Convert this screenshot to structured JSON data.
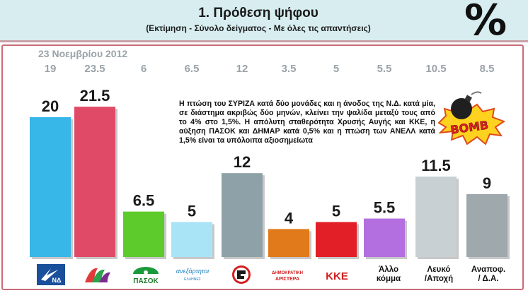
{
  "header": {
    "title": "1. Πρόθεση ψήφου",
    "subtitle": "(Εκτίμηση - Σύνολο δείγματος - Με όλες τις απαντήσεις)",
    "percent_symbol": "%"
  },
  "previous": {
    "date_label": "23 Νοεμβρίου 2012",
    "values": [
      "19",
      "23.5",
      "6",
      "6.5",
      "12",
      "3.5",
      "5",
      "5.5",
      "10.5",
      "8.5"
    ]
  },
  "note": {
    "text": "Η πτώση του ΣΥΡΙΖΑ κατά δύο μονάδες και η άνοδος της Ν.Δ. κατά μία, σε διάστημα ακριβώς δύο μηνών, κλείνει την ψαλίδα μεταξύ τους από το 4% στο 1,5%. Η απόλυτη σταθερότητα Χρυσής Αυγής και ΚΚΕ, η αύξηση ΠΑΣΟΚ και ΔΗΜΑΡ κατά 0,5% και η πτώση των ΑΝΕΛΛ κατά 1,5% είναι τα υπόλοιπα αξιοσημείωτα"
  },
  "bomb": {
    "text": "BOMB"
  },
  "chart_data": {
    "type": "bar",
    "categories": [
      "ΝΔ",
      "ΣΥΡΙΖΑ",
      "ΠΑΣΟΚ",
      "Ανεξάρτητοι Έλληνες",
      "Χρυσή Αυγή",
      "ΔΗΜΑΡ",
      "ΚΚΕ",
      "Άλλο κόμμα",
      "Λευκό /Αποχή",
      "Αναποφ. / Δ.Α."
    ],
    "values": [
      20,
      21.5,
      6.5,
      5,
      12,
      4,
      5,
      5.5,
      11.5,
      9
    ],
    "value_labels": [
      "20",
      "21.5",
      "6.5",
      "5",
      "12",
      "4",
      "5",
      "5.5",
      "11.5",
      "9"
    ],
    "colors": [
      "#37b6e8",
      "#e04a66",
      "#5ecb2c",
      "#a9e4f6",
      "#8fa1a8",
      "#e07a1a",
      "#e21e26",
      "#b36fe0",
      "#c9d0d3",
      "#9fa9ad"
    ],
    "previous_values": [
      19,
      23.5,
      6,
      6.5,
      12,
      3.5,
      5,
      5.5,
      10.5,
      8.5
    ],
    "ylim": [
      0,
      22
    ]
  },
  "logos": {
    "nd": "ΝΔ",
    "pasok": "ΠΑΣΟΚ",
    "anel": "ανεξάρτητοι",
    "anel_sub": "ΕΛΛΗΝΕΣ",
    "dimar_top": "ΔΗΜΟΚΡΑΤΙΚΗ",
    "dimar_bottom": "ΑΡΙΣΤΕΡΑ",
    "kke": "ΚΚΕ"
  },
  "text_labels": {
    "allo_1": "Άλλο",
    "allo_2": "κόμμα",
    "lefko_1": "Λευκό",
    "lefko_2": "/Αποχή",
    "anapof_1": "Αναποφ.",
    "anapof_2": "/ Δ.Α."
  }
}
